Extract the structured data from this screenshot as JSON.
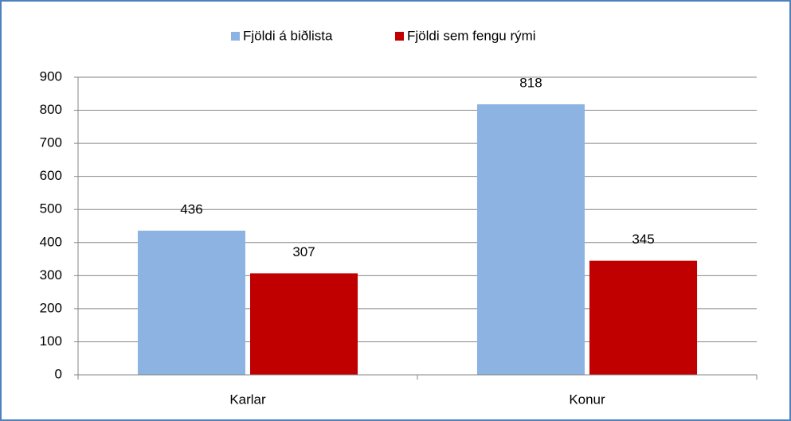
{
  "chart_data": {
    "type": "bar",
    "categories": [
      "Karlar",
      "Konur"
    ],
    "series": [
      {
        "name": "Fjöldi á biðlista",
        "color": "#8db3e2",
        "values": [
          436,
          818
        ]
      },
      {
        "name": "Fjöldi sem fengu rými",
        "color": "#c00000",
        "values": [
          307,
          345
        ]
      }
    ],
    "ylim": [
      0,
      900
    ],
    "yticks": [
      0,
      100,
      200,
      300,
      400,
      500,
      600,
      700,
      800,
      900
    ],
    "grid": true,
    "legend": "top"
  }
}
